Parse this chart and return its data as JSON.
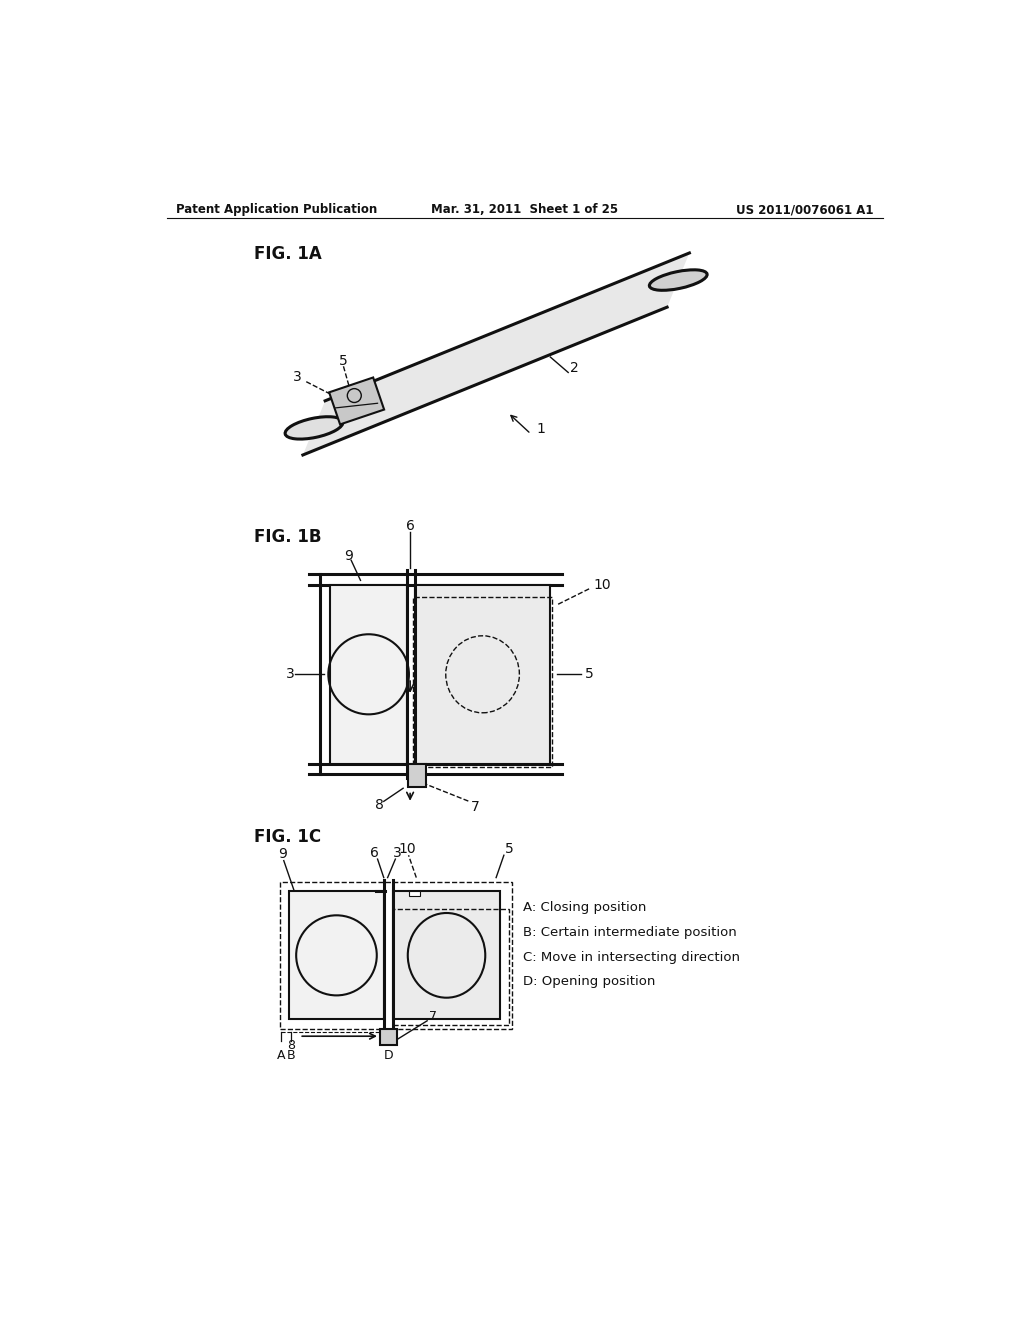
{
  "background_color": "#ffffff",
  "header_left": "Patent Application Publication",
  "header_center": "Mar. 31, 2011  Sheet 1 of 25",
  "header_right": "US 2011/0076061 A1",
  "fig1a_label": "FIG. 1A",
  "fig1b_label": "FIG. 1B",
  "fig1c_label": "FIG. 1C",
  "legend_items": [
    "A: Closing position",
    "B: Certain intermediate position",
    "C: Move in intersecting direction",
    "D: Opening position"
  ]
}
